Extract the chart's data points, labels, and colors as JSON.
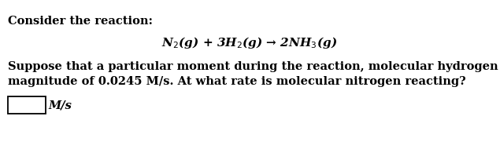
{
  "title_line": "Consider the reaction:",
  "equation": "N$_2$(g) + 3H$_2$(g) → 2NH$_3$(g)",
  "body_line1": "Suppose that a particular moment during the reaction, molecular hydrogen is reacting with a",
  "body_line2": "magnitude of 0.0245 M/s. At what rate is molecular nitrogen reacting?",
  "units_label": "M/s",
  "bg_color": "#ffffff",
  "text_color": "#000000",
  "font_size_title": 10.5,
  "font_size_eq": 11,
  "font_size_body": 10.5,
  "font_size_units": 10.5
}
